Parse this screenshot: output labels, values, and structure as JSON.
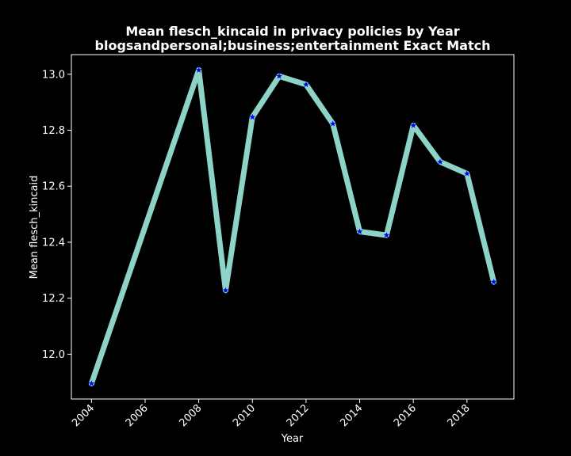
{
  "chart_data": {
    "type": "line",
    "title_line1": "Mean flesch_kincaid in privacy policies by Year",
    "title_line2": "blogsandpersonal;business;entertainment Exact Match",
    "xlabel": "Year",
    "ylabel": "Mean flesch_kincaid",
    "x": [
      2004,
      2008,
      2009,
      2010,
      2011,
      2012,
      2013,
      2014,
      2015,
      2016,
      2017,
      2018,
      2019
    ],
    "y": [
      11.895,
      13.015,
      12.228,
      12.847,
      12.993,
      12.963,
      12.823,
      12.438,
      12.425,
      12.817,
      12.687,
      12.645,
      12.258
    ],
    "xlim": [
      2003.25,
      2019.75
    ],
    "ylim": [
      11.84,
      13.07
    ],
    "xticks": [
      2004,
      2006,
      2008,
      2010,
      2012,
      2014,
      2016,
      2018
    ],
    "yticks": [
      12.0,
      12.2,
      12.4,
      12.6,
      12.8,
      13.0
    ],
    "ytick_labels": [
      "12.0",
      "12.2",
      "12.4",
      "12.6",
      "12.8",
      "13.0"
    ],
    "grid": false,
    "colors": {
      "background": "#000000",
      "line": "#8dd3c7",
      "marker": "#0000ff",
      "axes": "#ffffff",
      "text": "#ffffff"
    },
    "marker": "star"
  }
}
